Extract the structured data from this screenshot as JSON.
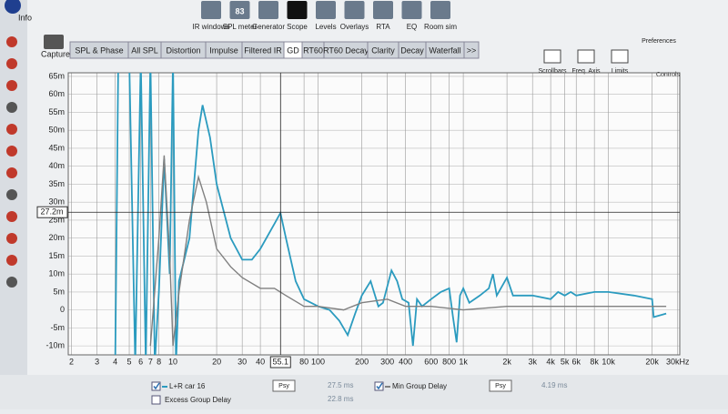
{
  "toolbar": {
    "info": "Info",
    "spl_badge": "83",
    "buttons": [
      "IR windows",
      "SPL meter",
      "Generator",
      "Scope",
      "Levels",
      "Overlays",
      "RTA",
      "EQ",
      "Room sim"
    ],
    "preferences": "Preferences",
    "controls": "Controls"
  },
  "capture": "Capture",
  "tabs": [
    "SPL & Phase",
    "All SPL",
    "Distortion",
    "Impulse",
    "Filtered IR",
    "GD",
    "RT60",
    "RT60 Decay",
    "Clarity",
    "Decay",
    "Waterfall",
    ">>"
  ],
  "view_buttons": [
    "Scrollbars",
    "Freq. Axis",
    "Limits"
  ],
  "chart_data": {
    "type": "line",
    "log_x": true,
    "grid": true,
    "xlim": [
      1.9,
      31000
    ],
    "ylim": [
      -12.5,
      66
    ],
    "xticks": [
      2,
      3,
      4,
      5,
      6,
      7,
      8,
      10,
      20,
      30,
      40,
      {
        "value": 80,
        "label": "80"
      },
      100,
      200,
      300,
      400,
      600,
      800,
      {
        "value": 1000,
        "label": "1k"
      },
      {
        "value": 2000,
        "label": "2k"
      },
      {
        "value": 3000,
        "label": "3k"
      },
      {
        "value": 4000,
        "label": "4k"
      },
      {
        "value": 5000,
        "label": "5k"
      },
      {
        "value": 6000,
        "label": "6k"
      },
      {
        "value": 8000,
        "label": "8k"
      },
      {
        "value": 10000,
        "label": "10k"
      },
      {
        "value": 20000,
        "label": "20k"
      },
      {
        "value": 30000,
        "label": "30kHz"
      }
    ],
    "yticks": [
      {
        "value": 65,
        "label": "65m"
      },
      {
        "value": 60,
        "label": "60m"
      },
      {
        "value": 55,
        "label": "55m"
      },
      {
        "value": 50,
        "label": "50m"
      },
      {
        "value": 45,
        "label": "45m"
      },
      {
        "value": 40,
        "label": "40m"
      },
      {
        "value": 35,
        "label": "35m"
      },
      {
        "value": 30,
        "label": "30m"
      },
      {
        "value": 25,
        "label": "25m"
      },
      {
        "value": 20,
        "label": "20m"
      },
      {
        "value": 15,
        "label": "15m"
      },
      {
        "value": 10,
        "label": "10m"
      },
      {
        "value": 5,
        "label": "5m"
      },
      {
        "value": 0,
        "label": "0"
      },
      {
        "value": -5,
        "label": "-5m"
      },
      {
        "value": -10,
        "label": "-10m"
      }
    ],
    "cursor": {
      "x": {
        "value": 55.1,
        "label": "55.1"
      },
      "y": {
        "value": 27.2,
        "label": "27.2m"
      }
    },
    "series": [
      {
        "name": "L+R car 16",
        "color": "#2b9bbf",
        "x": [
          4,
          4.2,
          5,
          5.5,
          6,
          6.5,
          7,
          7.5,
          8,
          8.7,
          9.5,
          10,
          10.5,
          11,
          13,
          15,
          16,
          18,
          20,
          25,
          30,
          35,
          40,
          50,
          55,
          60,
          70,
          80,
          100,
          120,
          140,
          160,
          180,
          200,
          230,
          260,
          280,
          320,
          350,
          380,
          420,
          450,
          480,
          520,
          600,
          700,
          800,
          850,
          900,
          950,
          1000,
          1100,
          1300,
          1500,
          1600,
          1700,
          2000,
          2200,
          3000,
          4000,
          4500,
          5000,
          5500,
          6000,
          8000,
          10000,
          15000,
          20000,
          20500,
          25000
        ],
        "values": [
          -15,
          70,
          70,
          -15,
          70,
          -15,
          70,
          -15,
          5,
          42,
          10,
          70,
          -15,
          8,
          20,
          50,
          57,
          48,
          35,
          20,
          14,
          14,
          17,
          24,
          27,
          20,
          8,
          3,
          1,
          0,
          -3,
          -7,
          -1,
          4,
          8,
          1,
          2,
          11,
          8,
          3,
          2,
          -10,
          3,
          1,
          3,
          5,
          6,
          -2,
          -9,
          4,
          6,
          2,
          4,
          6,
          10,
          4,
          9,
          4,
          4,
          3,
          5,
          4,
          5,
          4,
          5,
          5,
          4,
          3,
          -2,
          -1
        ]
      },
      {
        "name": "Min Group Delay",
        "color": "#808080",
        "x": [
          7,
          8,
          8.7,
          9.5,
          10,
          11,
          13,
          15,
          17,
          20,
          25,
          30,
          40,
          50,
          60,
          80,
          100,
          150,
          200,
          300,
          400,
          600,
          1000,
          2000,
          5000,
          10000,
          20000,
          25000
        ],
        "values": [
          -10,
          20,
          43,
          15,
          -10,
          5,
          25,
          37,
          30,
          17,
          12,
          9,
          6,
          6,
          4,
          1,
          1,
          0,
          2,
          3,
          1,
          1,
          0,
          1,
          1,
          1,
          1,
          1
        ]
      }
    ]
  },
  "legend": {
    "excess": "Excess Group Delay",
    "psy": "Psy",
    "values": [
      "27.5 ms",
      "22.8 ms",
      "4.19 ms"
    ]
  }
}
